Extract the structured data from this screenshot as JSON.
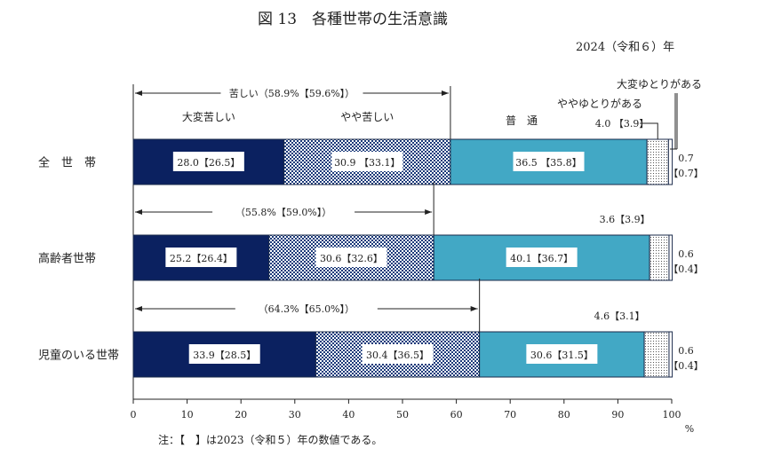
{
  "title": "図 13　各種世帯の生活意識",
  "year_label": "2024（令和６）年",
  "note": "注：【　】は2023（令和５）年の数値である。",
  "colors": {
    "very_hard": "#0b2160",
    "somewhat_hard": "#1b3a7a",
    "normal": "#42a8c5",
    "somewhat_comfortable": "#ffffff",
    "very_comfortable": "#ffffff"
  },
  "chart_data": {
    "type": "bar",
    "orientation": "horizontal-stacked-100",
    "categories": [
      "全　世　帯",
      "高齢者世帯",
      "児童のいる世帯"
    ],
    "series": [
      {
        "name": "大変苦しい",
        "values": [
          28.0,
          25.2,
          33.9
        ],
        "prev_values": [
          26.5,
          26.4,
          28.5
        ],
        "labels": [
          "28.0【26.5】",
          "25.2【26.4】",
          "33.9【28.5】"
        ]
      },
      {
        "name": "やや苦しい",
        "values": [
          30.9,
          30.6,
          30.4
        ],
        "prev_values": [
          33.1,
          32.6,
          36.5
        ],
        "labels": [
          "30.9 【33.1】",
          "30.6【32.6】",
          "30.4【36.5】"
        ]
      },
      {
        "name": "普　通",
        "values": [
          36.5,
          40.1,
          30.6
        ],
        "prev_values": [
          35.8,
          36.7,
          31.5
        ],
        "labels": [
          "36.5 【35.8】",
          "40.1【36.7】",
          "30.6【31.5】"
        ]
      },
      {
        "name": "ややゆとりがある",
        "values": [
          4.0,
          3.6,
          4.6
        ],
        "prev_values": [
          3.9,
          3.9,
          3.1
        ],
        "labels": [
          "4.0 【3.9】",
          "3.6【3.9】",
          "4.6【3.1】"
        ]
      },
      {
        "name": "大変ゆとりがある",
        "values": [
          0.7,
          0.6,
          0.6
        ],
        "prev_values": [
          0.7,
          0.4,
          0.4
        ],
        "labels": [
          "0.7",
          "0.6",
          "0.6"
        ],
        "prev_labels": [
          "【0.7】",
          "【0.4】",
          "【0.4】"
        ]
      }
    ],
    "hardship_totals": [
      "苦しい（58.9%【59.6%】）",
      "（55.8%【59.0%】）",
      "（64.3%【65.0%】）"
    ],
    "xlim": [
      0,
      100
    ],
    "xticks": [
      "0",
      "10",
      "20",
      "30",
      "40",
      "50",
      "60",
      "70",
      "80",
      "90",
      "100"
    ],
    "xunit": "%",
    "grid": false,
    "legend": "inline-labels-top"
  }
}
